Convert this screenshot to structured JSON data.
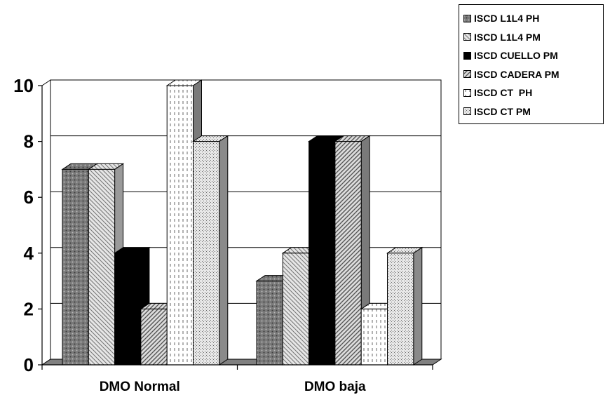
{
  "chart_data": {
    "type": "bar",
    "categories": [
      "DMO Normal",
      "DMO baja"
    ],
    "series": [
      {
        "name": "ISCD L1L4 PH",
        "values": [
          7,
          3
        ]
      },
      {
        "name": "ISCD L1L4 PM",
        "values": [
          7,
          4
        ]
      },
      {
        "name": "ISCD CUELLO PM",
        "values": [
          4,
          8
        ]
      },
      {
        "name": "ISCD CADERA PM",
        "values": [
          2,
          8
        ]
      },
      {
        "name": "ISCD CT  PH",
        "values": [
          10,
          2
        ]
      },
      {
        "name": "ISCD CT PM",
        "values": [
          8,
          4
        ]
      }
    ],
    "ylim": [
      0,
      10
    ],
    "yticks": [
      "0",
      "2",
      "4",
      "6",
      "8",
      "10"
    ],
    "grid": true,
    "legend_position": "top-right",
    "three_d": true
  }
}
